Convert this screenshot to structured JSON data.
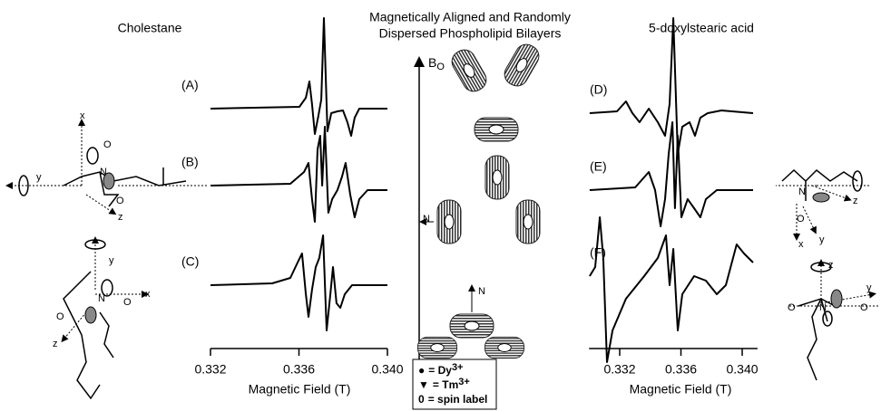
{
  "chart_data": [
    {
      "type": "line",
      "title": "Cholestane",
      "xlabel": "Magnetic Field (T)",
      "xlim": [
        0.332,
        0.34
      ],
      "xticks": [
        0.332,
        0.336,
        {
          "value": 0.34,
          "label": "0.340"
        }
      ],
      "color": "#000000",
      "series": [
        {
          "name": "(A)",
          "x": [
            0.332,
            0.33602,
            0.33631,
            0.33647,
            0.33659,
            0.33672,
            0.33688,
            0.33701,
            0.33713,
            0.33729,
            0.33746,
            0.33774,
            0.33799,
            0.33819,
            0.33836,
            0.33852,
            0.33873,
            0.34
          ],
          "values": [
            0,
            2,
            12,
            30,
            5,
            -28,
            -8,
            10,
            100,
            -25,
            -5,
            -3,
            -2,
            -15,
            -30,
            -10,
            0,
            0
          ]
        },
        {
          "name": "(B)",
          "x": [
            0.332,
            0.33561,
            0.33623,
            0.33643,
            0.33659,
            0.33672,
            0.33684,
            0.33696,
            0.33705,
            0.33717,
            0.33733,
            0.3375,
            0.33774,
            0.33795,
            0.33811,
            0.33832,
            0.33852,
            0.33873,
            0.3391,
            0.34
          ],
          "values": [
            0,
            2,
            15,
            25,
            -15,
            -40,
            40,
            55,
            0,
            65,
            -30,
            -15,
            -5,
            10,
            25,
            -10,
            -35,
            -15,
            -5,
            -5
          ]
        },
        {
          "name": "(C)",
          "x": [
            0.332,
            0.33479,
            0.33561,
            0.33594,
            0.33614,
            0.33631,
            0.33643,
            0.33659,
            0.33676,
            0.33692,
            0.33709,
            0.33725,
            0.33742,
            0.33754,
            0.3377,
            0.33787,
            0.33807,
            0.3384,
            0.34
          ],
          "values": [
            0,
            2,
            8,
            25,
            35,
            -10,
            -35,
            -5,
            20,
            30,
            55,
            -50,
            -10,
            20,
            -20,
            -25,
            -10,
            0,
            0
          ]
        }
      ]
    },
    {
      "type": "line",
      "title": "5-doxylstearic acid",
      "xlabel": "Magnetic Field (T)",
      "xlim": [
        0.33,
        0.341
      ],
      "xticks": [
        0.332,
        0.336,
        {
          "value": 0.34,
          "label": "0.340"
        }
      ],
      "color": "#000000",
      "series": [
        {
          "name": "(D)",
          "x": [
            0.33004,
            0.33182,
            0.33241,
            0.33283,
            0.3333,
            0.3339,
            0.33449,
            0.33496,
            0.33526,
            0.3355,
            0.33579,
            0.33609,
            0.33656,
            0.33692,
            0.33727,
            0.33775,
            0.33864,
            0.34071
          ],
          "values": [
            0,
            2,
            13,
            0,
            -10,
            5,
            -10,
            -25,
            10,
            105,
            -45,
            -15,
            -10,
            -25,
            -5,
            0,
            3,
            0
          ]
        },
        {
          "name": "(E)",
          "x": [
            0.33004,
            0.33301,
            0.3339,
            0.33431,
            0.33467,
            0.33496,
            0.3352,
            0.33544,
            0.33561,
            0.33579,
            0.33603,
            0.33644,
            0.33686,
            0.33727,
            0.33763,
            0.33834,
            0.34071
          ],
          "values": [
            0,
            3,
            20,
            0,
            -40,
            -10,
            40,
            75,
            -20,
            60,
            -30,
            -10,
            -20,
            -30,
            -10,
            0,
            0
          ]
        },
        {
          "name": "(F)",
          "x": [
            0.33004,
            0.3304,
            0.3307,
            0.33093,
            0.33117,
            0.33153,
            0.33241,
            0.3336,
            0.33449,
            0.33502,
            0.33526,
            0.3355,
            0.33579,
            0.33609,
            0.33686,
            0.33763,
            0.33834,
            0.33893,
            0.33964,
            0.34012,
            0.34071
          ],
          "values": [
            0,
            10,
            65,
            20,
            -95,
            -60,
            -25,
            0,
            20,
            45,
            -10,
            30,
            -60,
            -20,
            0,
            -5,
            -20,
            -10,
            35,
            25,
            15
          ]
        }
      ]
    }
  ],
  "center": {
    "title": [
      "Magnetically Aligned and Randomly",
      "Dispersed Phospholipid Bilayers"
    ],
    "field": {
      "symbol": "B",
      "sub": "O"
    },
    "bilayer_labels": [
      "N",
      "N"
    ],
    "key": [
      {
        "symbol": "●",
        "text": "= Dy",
        "sup": "3+"
      },
      {
        "symbol": "▼",
        "text": "= Tm",
        "sup": "3+"
      },
      {
        "symbol": "0",
        "text": "= spin label"
      }
    ]
  },
  "molecules": [
    {
      "labels": [
        "x",
        "y",
        "z",
        "N",
        "O",
        "O"
      ]
    },
    {
      "labels": [
        "y",
        "x",
        "z",
        "N",
        "O",
        "O"
      ]
    },
    {
      "labels": [
        "z",
        "N",
        "O",
        "y",
        "x"
      ]
    },
    {
      "labels": [
        "z",
        "y",
        "O",
        "N",
        "O"
      ]
    }
  ]
}
